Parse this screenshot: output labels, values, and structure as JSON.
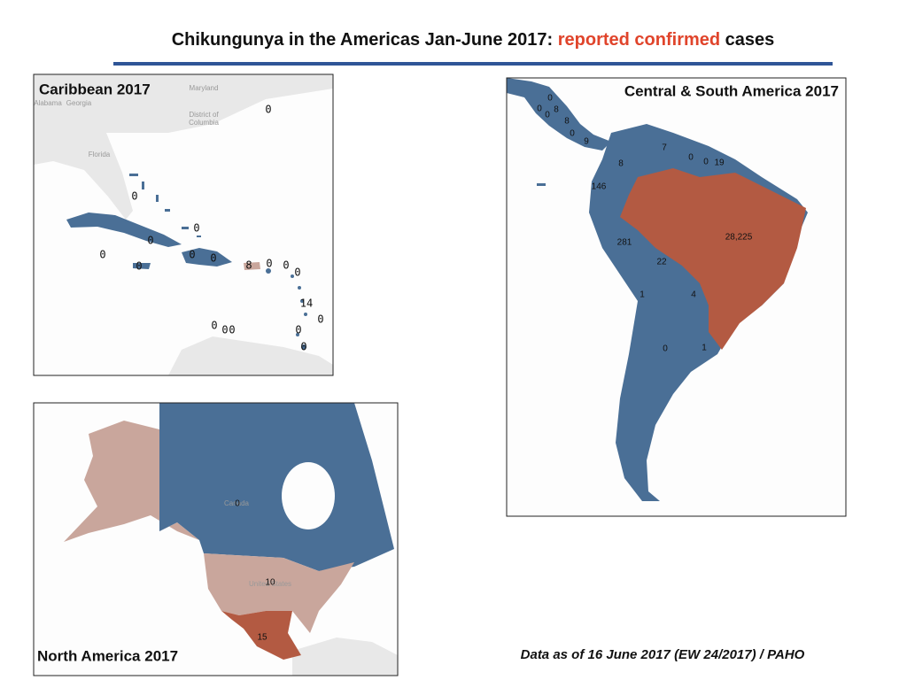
{
  "header": {
    "title": [
      "Chikungunya in the Americas Jan-June 2017:",
      "reported confirmed",
      "cases"
    ]
  },
  "maps": [
    {
      "title": "Caribbean 2017",
      "place_labels": [
        "Maryland",
        "Alabama",
        "Georgia",
        "District of",
        "Columbia",
        "Florida"
      ],
      "case_labels": [
        0,
        0,
        0,
        0,
        0,
        0,
        0,
        0,
        8,
        0,
        0,
        0,
        14,
        0,
        0,
        0,
        0,
        0,
        0
      ]
    },
    {
      "title": "Central & South America 2017",
      "place_labels": [],
      "case_labels": [
        0,
        0,
        8,
        0,
        8,
        0,
        9,
        7,
        0,
        0,
        19,
        8,
        146,
        281,
        {
          "value": 28225,
          "label": "28,225"
        },
        22,
        1,
        4,
        0,
        1
      ]
    },
    {
      "title": "North America 2017",
      "place_labels": [
        "Canada",
        "United States"
      ],
      "case_labels": [
        0,
        10,
        15
      ]
    }
  ],
  "footnote": "Data as of 16 June 2017 (EW 24/2017) / PAHO"
}
